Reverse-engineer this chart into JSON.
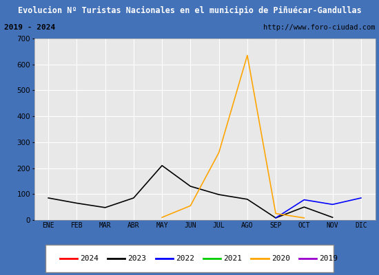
{
  "title": "Evolucion Nº Turistas Nacionales en el municipio de Piñuécar-Gandullas",
  "subtitle_left": "2019 - 2024",
  "subtitle_right": "http://www.foro-ciudad.com",
  "months": [
    "ENE",
    "FEB",
    "MAR",
    "ABR",
    "MAY",
    "JUN",
    "JUL",
    "AGO",
    "SEP",
    "OCT",
    "NOV",
    "DIC"
  ],
  "ylim": [
    0,
    700
  ],
  "yticks": [
    0,
    100,
    200,
    300,
    400,
    500,
    600,
    700
  ],
  "series": {
    "2024": {
      "color": "#ff0000",
      "data": [
        null,
        null,
        null,
        null,
        null,
        null,
        null,
        null,
        null,
        null,
        null,
        null
      ]
    },
    "2023": {
      "color": "#000000",
      "data": [
        85,
        65,
        48,
        85,
        210,
        130,
        98,
        80,
        8,
        50,
        10,
        null
      ]
    },
    "2022": {
      "color": "#0000ff",
      "data": [
        null,
        null,
        null,
        null,
        null,
        null,
        null,
        null,
        8,
        78,
        60,
        85
      ]
    },
    "2021": {
      "color": "#00cc00",
      "data": [
        null,
        null,
        null,
        null,
        null,
        null,
        null,
        null,
        null,
        null,
        null,
        null
      ]
    },
    "2020": {
      "color": "#ffa500",
      "data": [
        null,
        null,
        null,
        null,
        10,
        55,
        260,
        635,
        25,
        8,
        null,
        null
      ]
    },
    "2019": {
      "color": "#9900cc",
      "data": [
        null,
        null,
        null,
        null,
        null,
        null,
        null,
        null,
        null,
        null,
        null,
        null
      ]
    }
  },
  "title_bg": "#4472b8",
  "title_color": "#ffffff",
  "subtitle_bg": "#f0f0f0",
  "plot_bg": "#e8e8e8",
  "grid_color": "#ffffff",
  "outer_bg": "#4472b8",
  "legend_order": [
    "2024",
    "2023",
    "2022",
    "2021",
    "2020",
    "2019"
  ]
}
